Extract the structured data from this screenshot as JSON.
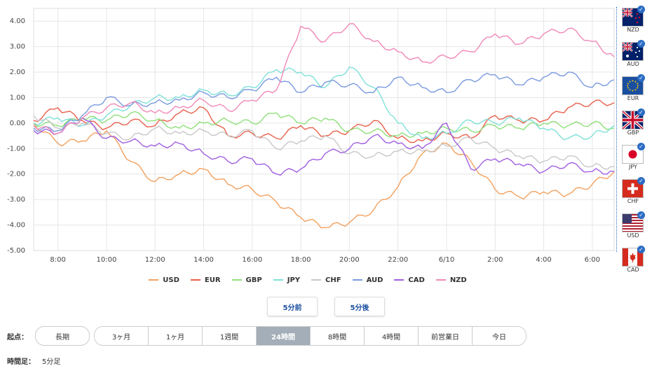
{
  "chart_data": {
    "type": "line",
    "ylim": [
      -5,
      4.5
    ],
    "y_ticks": [
      "4.00",
      "3.00",
      "2.00",
      "1.00",
      "0.00",
      "-1.00",
      "-2.00",
      "-3.00",
      "-4.00",
      "-5.00"
    ],
    "x_ticks": [
      "8:00",
      "10:00",
      "12:00",
      "14:00",
      "16:00",
      "18:00",
      "20:00",
      "22:00",
      "6/10",
      "2:00",
      "4:00",
      "6:00"
    ],
    "grid": true,
    "legend_position": "bottom",
    "series": [
      {
        "name": "USD",
        "color": "#f2a15f",
        "points": [
          [
            0,
            0.0
          ],
          [
            1,
            -0.8
          ],
          [
            2,
            -0.7
          ],
          [
            3,
            -0.3
          ],
          [
            4,
            -1.5
          ],
          [
            5,
            -2.3
          ],
          [
            6,
            -2.0
          ],
          [
            7,
            -1.8
          ],
          [
            8,
            -2.4
          ],
          [
            9,
            -2.6
          ],
          [
            10,
            -3.1
          ],
          [
            11,
            -3.7
          ],
          [
            12,
            -4.1
          ],
          [
            13,
            -3.9
          ],
          [
            14,
            -3.4
          ],
          [
            15,
            -2.5
          ],
          [
            16,
            -1.2
          ],
          [
            17,
            -0.8
          ],
          [
            18,
            -1.5
          ],
          [
            19,
            -2.6
          ],
          [
            20,
            -2.9
          ],
          [
            21,
            -2.7
          ],
          [
            22,
            -2.8
          ],
          [
            23,
            -2.4
          ],
          [
            23.9,
            -1.9
          ]
        ]
      },
      {
        "name": "EUR",
        "color": "#e8604c",
        "points": [
          [
            0,
            0.1
          ],
          [
            1,
            0.6
          ],
          [
            2,
            0.1
          ],
          [
            3,
            -0.2
          ],
          [
            4,
            0.1
          ],
          [
            5,
            -0.1
          ],
          [
            6,
            0.4
          ],
          [
            7,
            0.6
          ],
          [
            8,
            -0.5
          ],
          [
            9,
            -0.4
          ],
          [
            10,
            -0.6
          ],
          [
            11,
            -0.1
          ],
          [
            12,
            -0.5
          ],
          [
            13,
            -0.3
          ],
          [
            14,
            0.1
          ],
          [
            15,
            -0.6
          ],
          [
            16,
            -0.7
          ],
          [
            17,
            -0.4
          ],
          [
            18,
            -0.6
          ],
          [
            19,
            0.3
          ],
          [
            20,
            0.1
          ],
          [
            21,
            0.1
          ],
          [
            22,
            0.6
          ],
          [
            23,
            0.8
          ],
          [
            23.9,
            0.8
          ]
        ]
      },
      {
        "name": "GBP",
        "color": "#8fe07a",
        "points": [
          [
            0,
            0.0
          ],
          [
            1,
            -0.1
          ],
          [
            2,
            0.2
          ],
          [
            3,
            0.1
          ],
          [
            4,
            0.4
          ],
          [
            5,
            0.1
          ],
          [
            6,
            -0.2
          ],
          [
            7,
            0.0
          ],
          [
            8,
            0.1
          ],
          [
            9,
            0.0
          ],
          [
            10,
            0.4
          ],
          [
            11,
            0.0
          ],
          [
            12,
            0.2
          ],
          [
            13,
            -0.3
          ],
          [
            14,
            -0.3
          ],
          [
            15,
            -0.5
          ],
          [
            16,
            -0.4
          ],
          [
            17,
            -0.2
          ],
          [
            18,
            -0.3
          ],
          [
            19,
            -0.1
          ],
          [
            20,
            -0.2
          ],
          [
            21,
            0.0
          ],
          [
            22,
            -0.1
          ],
          [
            23,
            0.0
          ],
          [
            23.9,
            -0.2
          ]
        ]
      },
      {
        "name": "JPY",
        "color": "#7fe0d8",
        "points": [
          [
            0,
            0.0
          ],
          [
            1,
            0.2
          ],
          [
            2,
            -0.1
          ],
          [
            3,
            0.3
          ],
          [
            4,
            0.7
          ],
          [
            5,
            1.0
          ],
          [
            6,
            1.0
          ],
          [
            7,
            1.3
          ],
          [
            8,
            1.1
          ],
          [
            9,
            1.4
          ],
          [
            10,
            2.1
          ],
          [
            11,
            2.0
          ],
          [
            12,
            1.4
          ],
          [
            13,
            2.2
          ],
          [
            14,
            1.4
          ],
          [
            15,
            0.0
          ],
          [
            16,
            -0.6
          ],
          [
            17,
            -0.4
          ],
          [
            18,
            0.1
          ],
          [
            19,
            0.0
          ],
          [
            20,
            0.2
          ],
          [
            21,
            -0.2
          ],
          [
            22,
            -0.6
          ],
          [
            23,
            -0.5
          ],
          [
            23.9,
            -0.1
          ]
        ]
      },
      {
        "name": "CHF",
        "color": "#c8c8c8",
        "points": [
          [
            0,
            0.3
          ],
          [
            1,
            -0.2
          ],
          [
            2,
            0.0
          ],
          [
            3,
            -0.4
          ],
          [
            4,
            -0.6
          ],
          [
            5,
            -0.2
          ],
          [
            6,
            -0.4
          ],
          [
            7,
            -0.3
          ],
          [
            8,
            -0.5
          ],
          [
            9,
            -0.3
          ],
          [
            10,
            -1.0
          ],
          [
            11,
            -0.7
          ],
          [
            12,
            -0.5
          ],
          [
            13,
            -1.2
          ],
          [
            14,
            -1.3
          ],
          [
            15,
            -1.1
          ],
          [
            16,
            -1.1
          ],
          [
            17,
            -0.9
          ],
          [
            18,
            -0.6
          ],
          [
            19,
            -1.0
          ],
          [
            20,
            -1.3
          ],
          [
            21,
            -1.5
          ],
          [
            22,
            -1.3
          ],
          [
            23,
            -1.7
          ],
          [
            23.9,
            -1.7
          ]
        ]
      },
      {
        "name": "AUD",
        "color": "#7a9ae0",
        "points": [
          [
            0,
            -0.2
          ],
          [
            1,
            -0.3
          ],
          [
            2,
            0.3
          ],
          [
            3,
            1.0
          ],
          [
            4,
            0.7
          ],
          [
            5,
            0.8
          ],
          [
            6,
            0.9
          ],
          [
            7,
            1.2
          ],
          [
            8,
            1.0
          ],
          [
            9,
            1.3
          ],
          [
            10,
            1.8
          ],
          [
            11,
            1.2
          ],
          [
            12,
            1.6
          ],
          [
            13,
            1.5
          ],
          [
            14,
            1.2
          ],
          [
            15,
            1.8
          ],
          [
            16,
            1.4
          ],
          [
            17,
            1.2
          ],
          [
            18,
            1.7
          ],
          [
            19,
            1.9
          ],
          [
            20,
            1.5
          ],
          [
            21,
            1.8
          ],
          [
            22,
            2.0
          ],
          [
            23,
            1.4
          ],
          [
            23.9,
            1.7
          ]
        ]
      },
      {
        "name": "CAD",
        "color": "#a05ee0",
        "points": [
          [
            0,
            -0.3
          ],
          [
            1,
            -0.4
          ],
          [
            2,
            0.2
          ],
          [
            3,
            -0.6
          ],
          [
            4,
            -0.7
          ],
          [
            5,
            -0.9
          ],
          [
            6,
            -0.8
          ],
          [
            7,
            -1.2
          ],
          [
            8,
            -1.5
          ],
          [
            9,
            -1.4
          ],
          [
            10,
            -2.0
          ],
          [
            11,
            -1.8
          ],
          [
            12,
            -1.2
          ],
          [
            13,
            -1.0
          ],
          [
            14,
            -0.5
          ],
          [
            15,
            -0.8
          ],
          [
            16,
            -1.0
          ],
          [
            17,
            0.0
          ],
          [
            18,
            -1.8
          ],
          [
            19,
            -1.4
          ],
          [
            20,
            -1.6
          ],
          [
            21,
            -1.9
          ],
          [
            22,
            -1.6
          ],
          [
            23,
            -1.9
          ],
          [
            23.9,
            -1.9
          ]
        ]
      },
      {
        "name": "NZD",
        "color": "#f088b8",
        "points": [
          [
            0,
            -0.1
          ],
          [
            1,
            -0.4
          ],
          [
            2,
            0.2
          ],
          [
            3,
            0.6
          ],
          [
            4,
            0.8
          ],
          [
            5,
            0.4
          ],
          [
            6,
            0.6
          ],
          [
            7,
            0.9
          ],
          [
            8,
            0.5
          ],
          [
            9,
            0.9
          ],
          [
            10,
            1.3
          ],
          [
            11,
            3.8
          ],
          [
            12,
            3.2
          ],
          [
            13,
            3.9
          ],
          [
            14,
            3.2
          ],
          [
            15,
            2.8
          ],
          [
            16,
            2.4
          ],
          [
            17,
            2.6
          ],
          [
            18,
            2.8
          ],
          [
            19,
            3.5
          ],
          [
            20,
            3.1
          ],
          [
            21,
            3.5
          ],
          [
            22,
            3.7
          ],
          [
            23,
            3.2
          ],
          [
            23.9,
            2.6
          ]
        ]
      }
    ]
  },
  "flags": [
    {
      "code": "NZD",
      "checked": true
    },
    {
      "code": "AUD",
      "checked": true
    },
    {
      "code": "EUR",
      "checked": true
    },
    {
      "code": "GBP",
      "checked": true
    },
    {
      "code": "JPY",
      "checked": true
    },
    {
      "code": "CHF",
      "checked": true
    },
    {
      "code": "USD",
      "checked": true
    },
    {
      "code": "CAD",
      "checked": true
    }
  ],
  "check_mark": "✓",
  "nav": {
    "prev_label": "5分前",
    "next_label": "5分後"
  },
  "period": {
    "start_label": "起点：",
    "long_label": "長期",
    "options": [
      "3ヶ月",
      "1ヶ月",
      "1週間",
      "24時間",
      "8時間",
      "4時間",
      "前営業日",
      "今日"
    ],
    "active_index": 3
  },
  "timeframe": {
    "label": "時間足：",
    "value": "5分足"
  }
}
